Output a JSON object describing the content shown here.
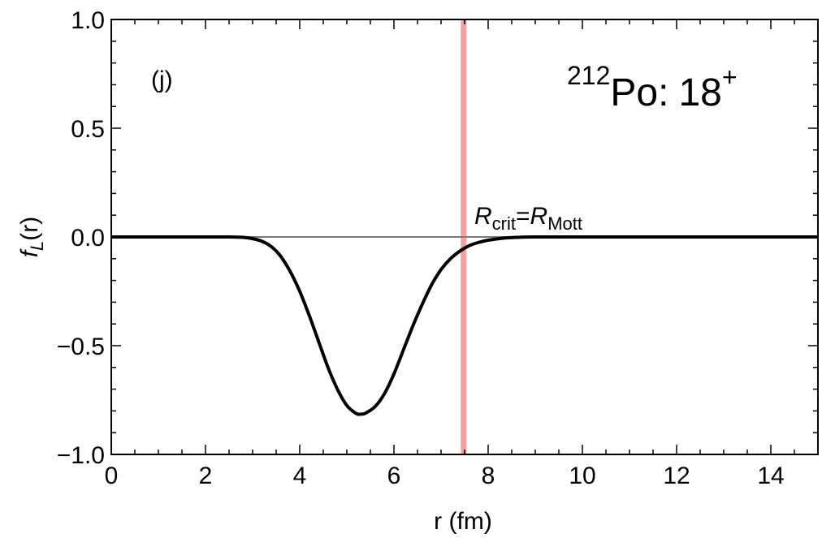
{
  "chart_data": {
    "type": "line",
    "panel_label": "(j)",
    "nucleus": {
      "mass_number": "212",
      "element": "Po",
      "separator": ":",
      "spin": "18",
      "parity": "+"
    },
    "xlabel": "r (fm)",
    "ylabel": {
      "main": "f",
      "sub": "L",
      "arg": "(r)"
    },
    "xlim": [
      0,
      15
    ],
    "ylim": [
      -1.0,
      1.0
    ],
    "x_ticks": [
      "0",
      "2",
      "4",
      "6",
      "8",
      "10",
      "12",
      "14"
    ],
    "y_ticks": [
      "1.0",
      "0.5",
      "0.0",
      "−0.5",
      "−1.0"
    ],
    "x_tick_values": [
      0,
      2,
      4,
      6,
      8,
      10,
      12,
      14
    ],
    "y_tick_values": [
      1.0,
      0.5,
      0.0,
      -0.5,
      -1.0
    ],
    "grid": false,
    "reference_line_y": 0,
    "vertical_marker": {
      "x": 7.48,
      "color": "#f4a0a0",
      "label": {
        "r1": "R",
        "s1": "crit",
        "eq": "=",
        "r2": "R",
        "s2": "Mott"
      }
    },
    "series": [
      {
        "color": "#000000",
        "x": [
          0,
          1,
          2,
          2.5,
          2.8,
          3.0,
          3.2,
          3.4,
          3.6,
          3.8,
          4.0,
          4.2,
          4.4,
          4.6,
          4.8,
          5.0,
          5.2,
          5.3,
          5.4,
          5.6,
          5.8,
          6.0,
          6.2,
          6.4,
          6.6,
          6.8,
          7.0,
          7.2,
          7.4,
          7.6,
          7.8,
          8.0,
          8.3,
          8.6,
          9.0,
          10,
          12,
          15
        ],
        "y": [
          0,
          0,
          0,
          0,
          -0.002,
          -0.008,
          -0.02,
          -0.045,
          -0.09,
          -0.16,
          -0.25,
          -0.36,
          -0.48,
          -0.6,
          -0.7,
          -0.775,
          -0.812,
          -0.815,
          -0.81,
          -0.78,
          -0.72,
          -0.63,
          -0.52,
          -0.41,
          -0.31,
          -0.22,
          -0.15,
          -0.1,
          -0.065,
          -0.04,
          -0.025,
          -0.015,
          -0.006,
          -0.002,
          0,
          0,
          0,
          0
        ]
      }
    ]
  }
}
